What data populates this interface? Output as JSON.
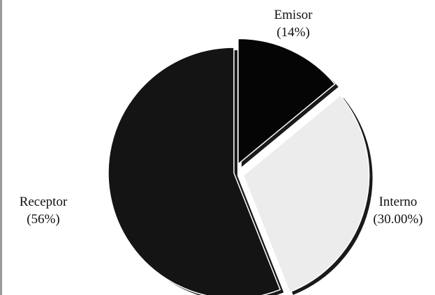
{
  "chart_data": {
    "type": "pie",
    "title": "",
    "slices": [
      {
        "label": "Emisor",
        "value_text": "(14%)",
        "value": 14,
        "color": "#050505",
        "exploded": true
      },
      {
        "label": "Interno",
        "value_text": "(30.00%)",
        "value": 30,
        "color": "#ececec",
        "exploded": true
      },
      {
        "label": "Receptor",
        "value_text": "(56%)",
        "value": 56,
        "color": "#141414",
        "exploded": false
      }
    ],
    "start_angle_deg": 0,
    "direction": "clockwise",
    "legend": "none"
  }
}
